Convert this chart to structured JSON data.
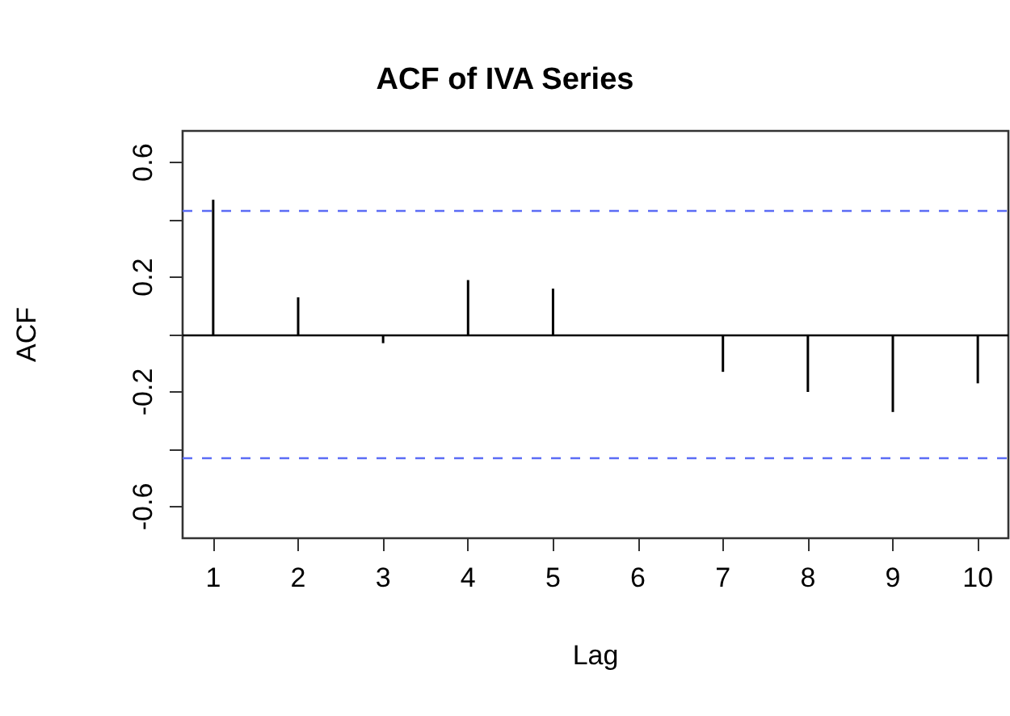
{
  "chart_data": {
    "type": "bar",
    "title": "ACF of IVA Series",
    "xlabel": "Lag",
    "ylabel": "ACF",
    "x": [
      1,
      2,
      3,
      4,
      5,
      6,
      7,
      8,
      9,
      10
    ],
    "values": [
      0.47,
      0.13,
      -0.03,
      0.19,
      0.16,
      0,
      -0.13,
      -0.2,
      -0.27,
      -0.17
    ],
    "color": "#000000",
    "xlim": [
      0.64,
      10.36
    ],
    "xticks": [
      1,
      2,
      3,
      4,
      5,
      6,
      7,
      8,
      9,
      10
    ],
    "ylim": [
      -0.71,
      0.71
    ],
    "yticks": [
      -0.6,
      {
        "value": -0.4,
        "label": null
      },
      -0.2,
      {
        "value": 0,
        "label": null
      },
      0.2,
      {
        "value": 0.4,
        "label": null
      },
      0.6
    ],
    "ref_lines": [
      {
        "axis": "y",
        "value": 0.43,
        "color": "#5b6cf5",
        "line_style": "dashed"
      },
      {
        "axis": "y",
        "value": -0.43,
        "color": "#5b6cf5",
        "line_style": "dashed"
      },
      {
        "axis": "y",
        "value": 0,
        "color": "#000000",
        "line_style": "solid"
      }
    ],
    "grid": false
  }
}
